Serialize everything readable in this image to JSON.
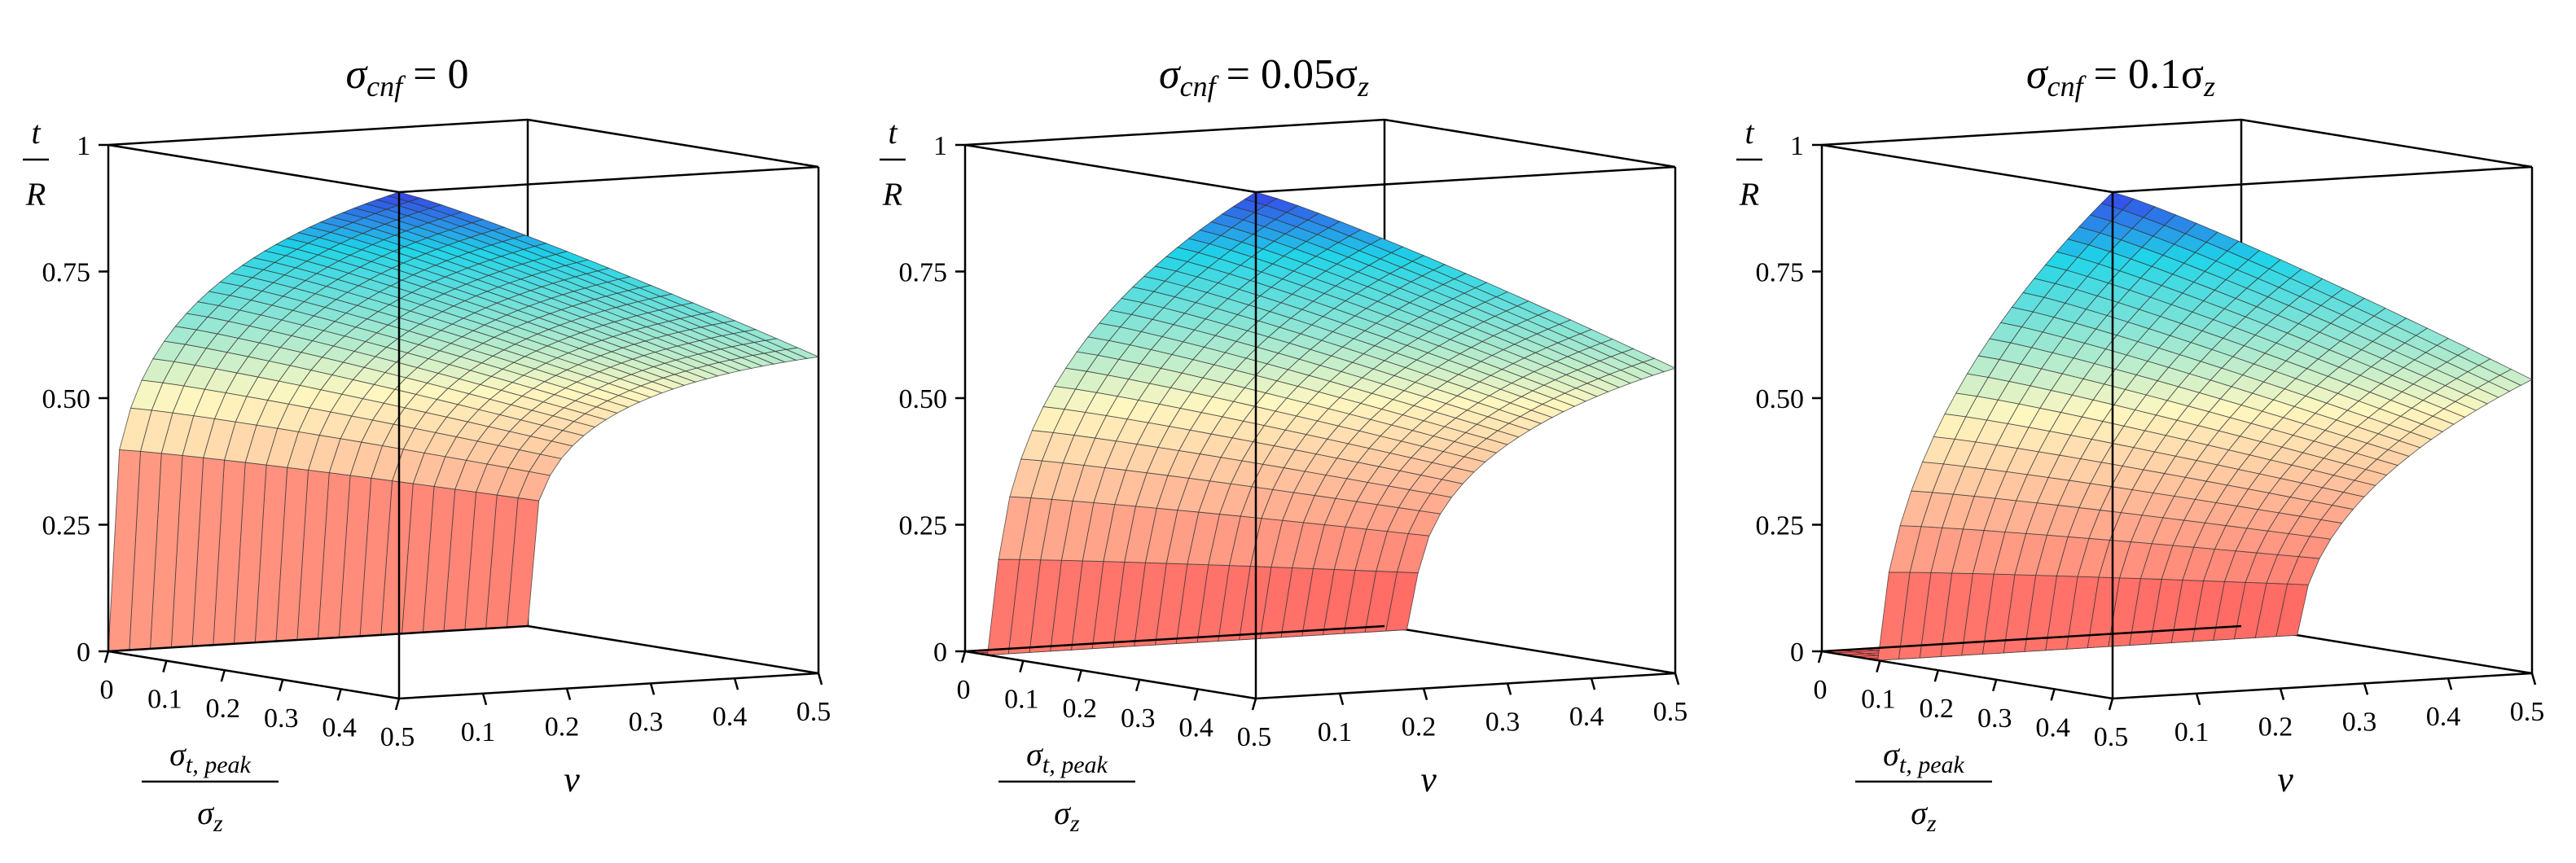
{
  "colors": {
    "low": "#ff5a5a",
    "mid": "#fff7c0",
    "high": "#1fd4e8",
    "highest": "#3540e8",
    "mesh": "#333333"
  },
  "chart_data": [
    {
      "type": "surface",
      "title": {
        "prefix": "σ",
        "sub": "cnf",
        "suffix": " = 0"
      },
      "confinement_ratio": 0,
      "zlabel": {
        "num": "t",
        "den": "R"
      },
      "xlabel": {
        "num_base": "σ",
        "num_sub": "t, peak",
        "den_base": "σ",
        "den_sub": "z"
      },
      "ylabel": "ν",
      "x_range": [
        0,
        0.5
      ],
      "y_range": [
        0,
        0.5
      ],
      "z_range": [
        0,
        1
      ],
      "x_ticks": [
        "0",
        "0.1",
        "0.2",
        "0.3",
        "0.4",
        "0.5"
      ],
      "y_ticks": [
        "0.1",
        "0.2",
        "0.3",
        "0.4",
        "0.5"
      ],
      "z_ticks": [
        "0",
        "0.25",
        "0.50",
        "0.75",
        "1"
      ]
    },
    {
      "type": "surface",
      "title": {
        "prefix": "σ",
        "sub": "cnf",
        "suffix": " = 0.05σ",
        "suffix_sub": "z"
      },
      "confinement_ratio": 0.05,
      "zlabel": {
        "num": "t",
        "den": "R"
      },
      "xlabel": {
        "num_base": "σ",
        "num_sub": "t, peak",
        "den_base": "σ",
        "den_sub": "z"
      },
      "ylabel": "ν",
      "x_range": [
        0,
        0.5
      ],
      "y_range": [
        0,
        0.5
      ],
      "z_range": [
        0,
        1
      ],
      "x_ticks": [
        "0",
        "0.1",
        "0.2",
        "0.3",
        "0.4",
        "0.5"
      ],
      "y_ticks": [
        "0.1",
        "0.2",
        "0.3",
        "0.4",
        "0.5"
      ],
      "z_ticks": [
        "0",
        "0.25",
        "0.50",
        "0.75",
        "1"
      ]
    },
    {
      "type": "surface",
      "title": {
        "prefix": "σ",
        "sub": "cnf",
        "suffix": " = 0.1σ",
        "suffix_sub": "z"
      },
      "confinement_ratio": 0.1,
      "zlabel": {
        "num": "t",
        "den": "R"
      },
      "xlabel": {
        "num_base": "σ",
        "num_sub": "t, peak",
        "den_base": "σ",
        "den_sub": "z"
      },
      "ylabel": "ν",
      "x_range": [
        0,
        0.5
      ],
      "y_range": [
        0,
        0.5
      ],
      "z_range": [
        0,
        1
      ],
      "x_ticks": [
        "0",
        "0.1",
        "0.2",
        "0.3",
        "0.4",
        "0.5"
      ],
      "y_ticks": [
        "0.1",
        "0.2",
        "0.3",
        "0.4",
        "0.5"
      ],
      "z_ticks": [
        "0",
        "0.25",
        "0.50",
        "0.75",
        "1"
      ]
    }
  ]
}
